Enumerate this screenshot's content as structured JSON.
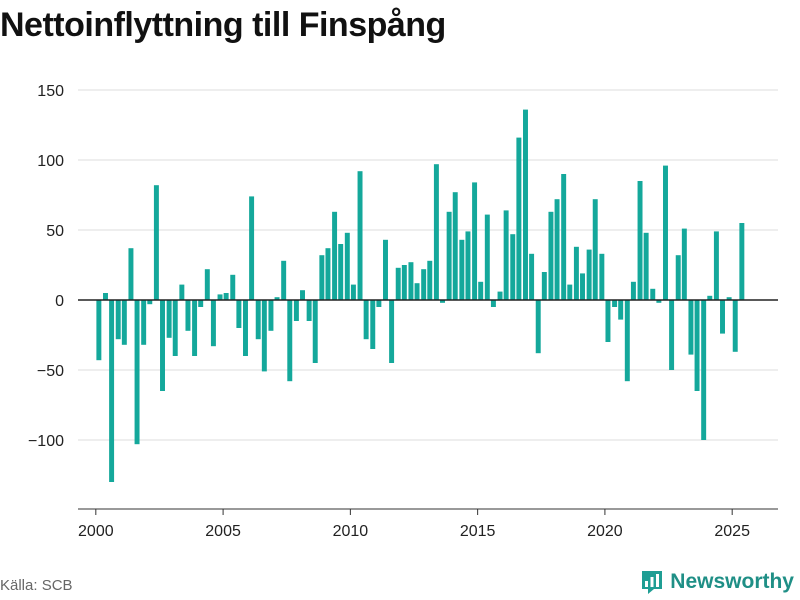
{
  "title": "Nettoinflyttning till Finspång",
  "source": "Källa: SCB",
  "brand": {
    "name": "Newsworthy",
    "icon": "newsworthy-logo-icon",
    "color": "#1f9e94"
  },
  "chart_data": {
    "type": "bar",
    "title": "Nettoinflyttning till Finspång",
    "xlabel": "",
    "ylabel": "",
    "ylim": [
      -150,
      160
    ],
    "xlim": [
      1999.3,
      2026.8
    ],
    "bar_color": "#14a89b",
    "grid": true,
    "y_ticks": [
      -100,
      -50,
      0,
      50,
      100,
      150
    ],
    "y_tick_labels": [
      "−100",
      "−50",
      "0",
      "50",
      "100",
      "150"
    ],
    "x_ticks": [
      2000,
      2005,
      2010,
      2015,
      2020,
      2025
    ],
    "x_tick_labels": [
      "2000",
      "2005",
      "2010",
      "2015",
      "2020",
      "2025"
    ],
    "x": [
      2000.12,
      2000.38,
      2000.62,
      2000.88,
      2001.12,
      2001.38,
      2001.62,
      2001.88,
      2002.12,
      2002.38,
      2002.62,
      2002.88,
      2003.12,
      2003.38,
      2003.62,
      2003.88,
      2004.12,
      2004.38,
      2004.62,
      2004.88,
      2005.12,
      2005.38,
      2005.62,
      2005.88,
      2006.12,
      2006.38,
      2006.62,
      2006.88,
      2007.12,
      2007.38,
      2007.62,
      2007.88,
      2008.12,
      2008.38,
      2008.62,
      2008.88,
      2009.12,
      2009.38,
      2009.62,
      2009.88,
      2010.12,
      2010.38,
      2010.62,
      2010.88,
      2011.12,
      2011.38,
      2011.62,
      2011.88,
      2012.12,
      2012.38,
      2012.62,
      2012.88,
      2013.12,
      2013.38,
      2013.62,
      2013.88,
      2014.12,
      2014.38,
      2014.62,
      2014.88,
      2015.12,
      2015.38,
      2015.62,
      2015.88,
      2016.12,
      2016.38,
      2016.62,
      2016.88,
      2017.12,
      2017.38,
      2017.62,
      2017.88,
      2018.12,
      2018.38,
      2018.62,
      2018.88,
      2019.12,
      2019.38,
      2019.62,
      2019.88,
      2020.12,
      2020.38,
      2020.62,
      2020.88,
      2021.12,
      2021.38,
      2021.62,
      2021.88,
      2022.12,
      2022.38,
      2022.62,
      2022.88,
      2023.12,
      2023.38,
      2023.62,
      2023.88,
      2024.12,
      2024.38,
      2024.62,
      2024.88,
      2025.12,
      2025.38
    ],
    "values": [
      -43,
      5,
      -130,
      -28,
      -32,
      37,
      -103,
      -32,
      -3,
      82,
      -65,
      -27,
      -40,
      11,
      -22,
      -40,
      -5,
      22,
      -33,
      4,
      5,
      18,
      -20,
      -40,
      74,
      -28,
      -51,
      -22,
      2,
      28,
      -58,
      -15,
      7,
      -15,
      -45,
      32,
      37,
      63,
      40,
      48,
      11,
      92,
      -28,
      -35,
      -5,
      43,
      -45,
      23,
      25,
      27,
      12,
      22,
      28,
      97,
      -2,
      63,
      77,
      43,
      49,
      84,
      13,
      61,
      -5,
      6,
      64,
      47,
      116,
      136,
      33,
      -38,
      20,
      63,
      72,
      90,
      11,
      38,
      19,
      36,
      72,
      33,
      -30,
      -5,
      -14,
      -58,
      13,
      85,
      48,
      8,
      -2,
      96,
      -50,
      32,
      51,
      -39,
      -65,
      -100,
      3,
      49,
      -24,
      2,
      -37,
      55
    ]
  }
}
